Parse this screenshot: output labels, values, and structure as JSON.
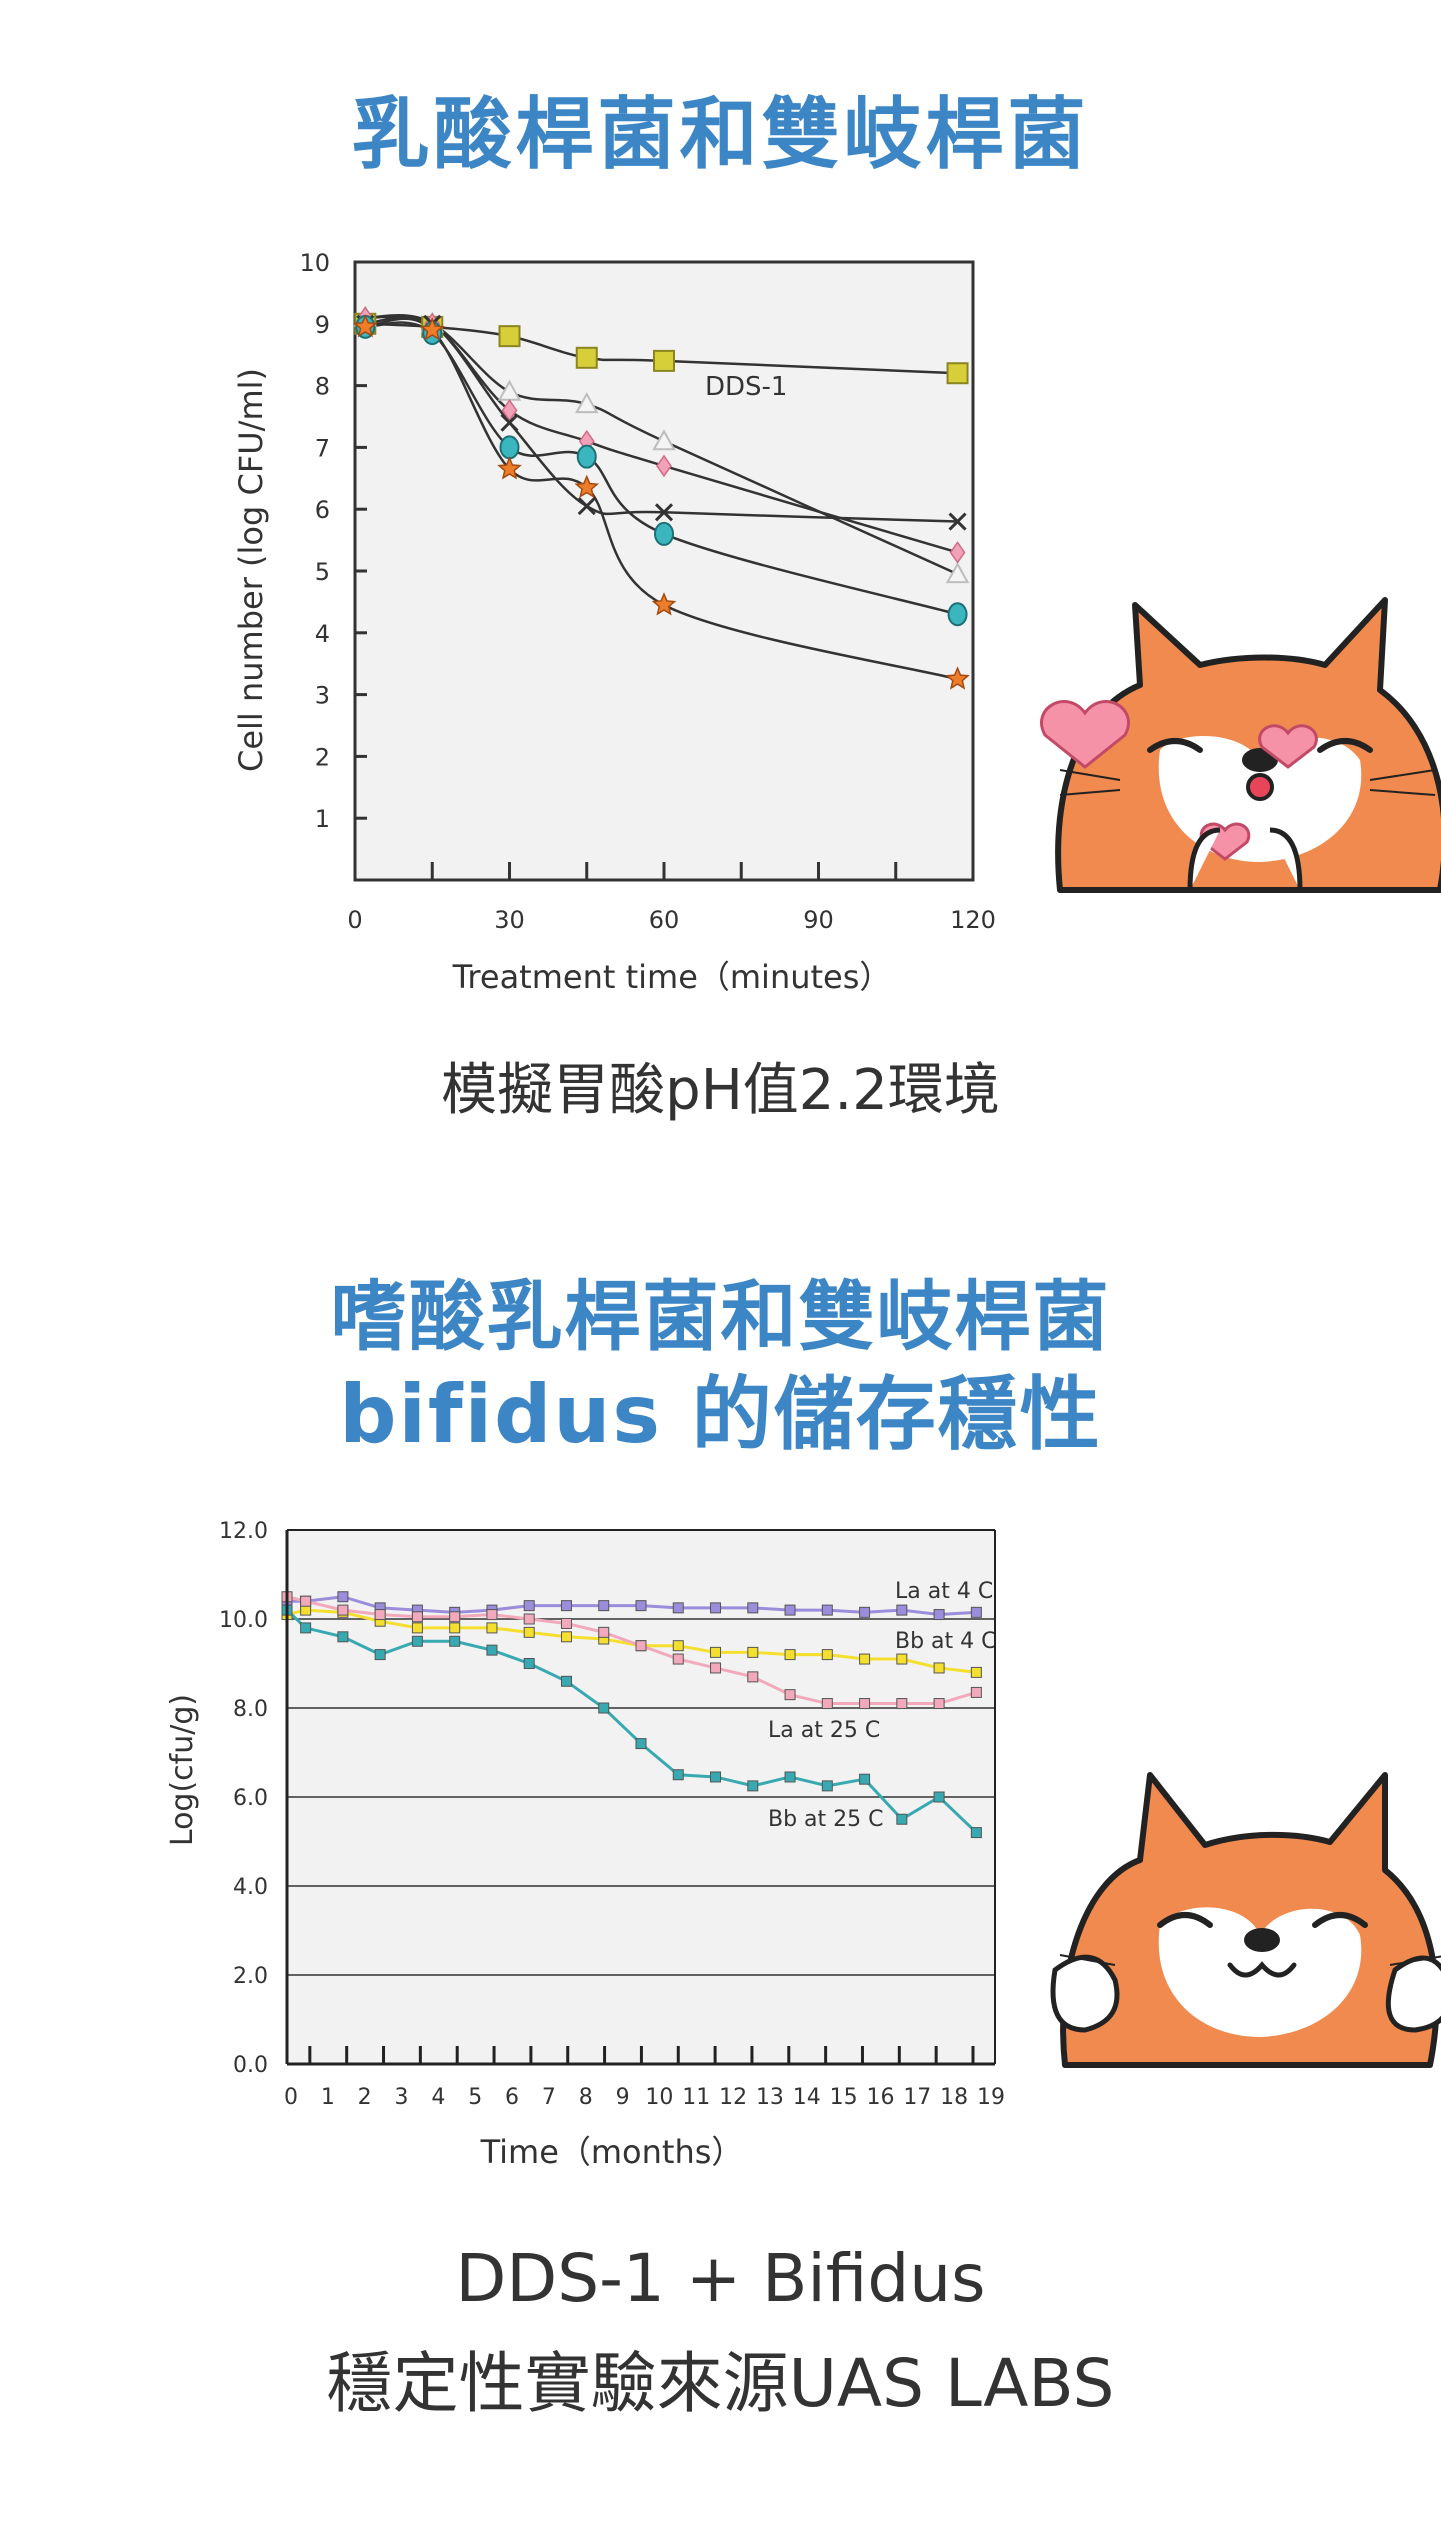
{
  "titles": {
    "top": "乳酸桿菌和雙岐桿菌",
    "middle_line1": "嗜酸乳桿菌和雙岐桿菌",
    "middle_line2": "bifidus 的儲存穩性"
  },
  "caption1": "模擬胃酸pH值2.2環境",
  "footer": {
    "line1": "DDS-1 + Bifidus",
    "line2": "穩定性實驗來源UAS LABS"
  },
  "colors": {
    "title_blue": "#3d86c6",
    "shiba_orange": "#f08a4f"
  },
  "mascots": [
    "shiba-dog-hearts",
    "shiba-dog-smile"
  ],
  "chart_data": [
    {
      "type": "line",
      "xlabel": "Treatment time（minutes）",
      "ylabel": "Cell number (log CFU/ml)",
      "xlim": [
        0,
        120
      ],
      "ylim": [
        0,
        10
      ],
      "xticks": [
        0,
        30,
        60,
        90,
        120
      ],
      "yticks": [
        1,
        2,
        3,
        4,
        5,
        6,
        7,
        8,
        9,
        10
      ],
      "annotations": [
        "DDS-1"
      ],
      "series": [
        {
          "name": "DDS-1",
          "marker": "square",
          "color": "#d6cf39",
          "x": [
            2,
            15,
            30,
            45,
            60,
            117
          ],
          "y": [
            9.0,
            8.95,
            8.8,
            8.45,
            8.4,
            8.2
          ]
        },
        {
          "marker": "triangle",
          "color": "#bdbdbd",
          "x": [
            2,
            15,
            30,
            45,
            60,
            117
          ],
          "y": [
            9.1,
            9.0,
            7.9,
            7.7,
            7.1,
            4.95
          ]
        },
        {
          "marker": "diamond",
          "color": "#f2a2b8",
          "x": [
            2,
            15,
            30,
            45,
            60,
            117
          ],
          "y": [
            9.1,
            9.0,
            7.6,
            7.1,
            6.7,
            5.3
          ]
        },
        {
          "marker": "x",
          "color": "#333333",
          "x": [
            2,
            15,
            30,
            45,
            60,
            117
          ],
          "y": [
            9.0,
            9.0,
            7.4,
            6.05,
            5.95,
            5.8
          ]
        },
        {
          "marker": "circle",
          "color": "#3cb6be",
          "x": [
            2,
            15,
            30,
            45,
            60,
            117
          ],
          "y": [
            8.95,
            8.85,
            7.0,
            6.85,
            5.6,
            4.3
          ]
        },
        {
          "marker": "star",
          "color": "#ee7d2b",
          "x": [
            2,
            15,
            30,
            45,
            60,
            117
          ],
          "y": [
            8.95,
            8.9,
            6.65,
            6.35,
            4.45,
            3.25
          ]
        }
      ]
    },
    {
      "type": "line",
      "xlabel": "Time（months）",
      "ylabel": "Log(cfu/g)",
      "xlim": [
        0,
        19
      ],
      "ylim": [
        0,
        12
      ],
      "xticks": [
        0,
        1,
        2,
        3,
        4,
        5,
        6,
        7,
        8,
        9,
        10,
        11,
        12,
        13,
        14,
        15,
        16,
        17,
        18,
        19
      ],
      "yticks": [
        "0.0",
        "2.0",
        "4.0",
        "6.0",
        "8.0",
        "10.0",
        "12.0"
      ],
      "grid": true,
      "series": [
        {
          "name": "La at 4 C",
          "color": "#9b8ddb",
          "x": [
            0,
            0.5,
            1.5,
            2.5,
            3.5,
            4.5,
            5.5,
            6.5,
            7.5,
            8.5,
            9.5,
            10.5,
            11.5,
            12.5,
            13.5,
            14.5,
            15.5,
            16.5,
            17.5,
            18.5
          ],
          "y": [
            10.4,
            10.4,
            10.5,
            10.25,
            10.2,
            10.15,
            10.2,
            10.3,
            10.3,
            10.3,
            10.3,
            10.25,
            10.25,
            10.25,
            10.2,
            10.2,
            10.15,
            10.2,
            10.1,
            10.15
          ]
        },
        {
          "name": "Bb at 4 C",
          "color": "#f5df2e",
          "x": [
            0,
            0.5,
            1.5,
            2.5,
            3.5,
            4.5,
            5.5,
            6.5,
            7.5,
            8.5,
            9.5,
            10.5,
            11.5,
            12.5,
            13.5,
            14.5,
            15.5,
            16.5,
            17.5,
            18.5
          ],
          "y": [
            10.1,
            10.2,
            10.15,
            9.95,
            9.8,
            9.8,
            9.8,
            9.7,
            9.6,
            9.55,
            9.4,
            9.4,
            9.25,
            9.25,
            9.2,
            9.2,
            9.1,
            9.1,
            8.9,
            8.8
          ]
        },
        {
          "name": "La at 25 C",
          "color": "#f2a9bb",
          "x": [
            0,
            0.5,
            1.5,
            2.5,
            3.5,
            4.5,
            5.5,
            6.5,
            7.5,
            8.5,
            9.5,
            10.5,
            11.5,
            12.5,
            13.5,
            14.5,
            15.5,
            16.5,
            17.5,
            18.5
          ],
          "y": [
            10.5,
            10.4,
            10.2,
            10.1,
            10.05,
            10.05,
            10.1,
            10.0,
            9.9,
            9.7,
            9.4,
            9.1,
            8.9,
            8.7,
            8.3,
            8.1,
            8.1,
            8.1,
            8.1,
            8.35
          ]
        },
        {
          "name": "Bb at 25 C",
          "color": "#38a8b1",
          "x": [
            0,
            0.5,
            1.5,
            2.5,
            3.5,
            4.5,
            5.5,
            6.5,
            7.5,
            8.5,
            9.5,
            10.5,
            11.5,
            12.5,
            13.5,
            14.5,
            15.5,
            16.5,
            17.5,
            18.5
          ],
          "y": [
            10.2,
            9.8,
            9.6,
            9.2,
            9.5,
            9.5,
            9.3,
            9.0,
            8.6,
            8.0,
            7.2,
            6.5,
            6.45,
            6.25,
            6.45,
            6.25,
            6.4,
            5.5,
            6.0,
            5.2
          ]
        }
      ]
    }
  ]
}
